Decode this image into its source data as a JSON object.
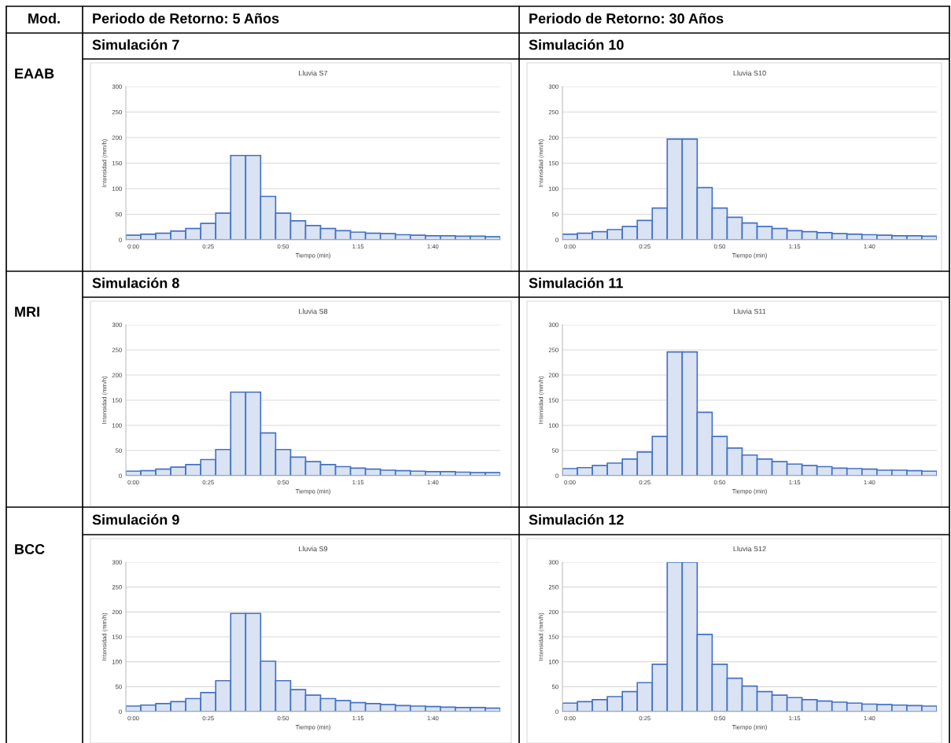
{
  "chart_data": [
    {
      "type": "bar",
      "title": "Lluvia S7",
      "subtitle": "Simulación 7",
      "annotations": [
        "Mod.",
        "Periodo de Retorno: 5 Años",
        "EAAB"
      ],
      "xlabel": "Tiempo (min)",
      "ylabel": "Intensidad (mm/h)",
      "categories": [
        "0:00",
        null,
        null,
        null,
        null,
        "0:25",
        null,
        null,
        null,
        null,
        "0:50",
        null,
        null,
        null,
        null,
        "1:15",
        null,
        null,
        null,
        null,
        "1:40",
        null,
        null,
        null,
        null
      ],
      "values": [
        9,
        11,
        13,
        17,
        22,
        32,
        52,
        165,
        165,
        85,
        52,
        37,
        28,
        22,
        18,
        15,
        13,
        12,
        10,
        9,
        8,
        8,
        7,
        7,
        6
      ],
      "color": "#dae3f3",
      "ylim": [
        0,
        300
      ],
      "yticks": [
        0,
        50,
        100,
        150,
        200,
        250,
        300
      ],
      "grid": "y"
    },
    {
      "type": "bar",
      "title": "Lluvia S10",
      "subtitle": "Simulación 10",
      "annotations": [
        "Periodo de Retorno: 30 Años"
      ],
      "xlabel": "Tiempo (min)",
      "ylabel": "Intensidad (mm/h)",
      "categories": [
        "0:00",
        null,
        null,
        null,
        null,
        "0:25",
        null,
        null,
        null,
        null,
        "0:50",
        null,
        null,
        null,
        null,
        "1:15",
        null,
        null,
        null,
        null,
        "1:40",
        null,
        null,
        null,
        null
      ],
      "values": [
        11,
        13,
        16,
        20,
        26,
        38,
        62,
        197,
        197,
        102,
        62,
        44,
        33,
        26,
        22,
        18,
        16,
        14,
        12,
        11,
        10,
        9,
        8,
        8,
        7
      ],
      "color": "#dae3f3",
      "ylim": [
        0,
        300
      ],
      "yticks": [
        0,
        50,
        100,
        150,
        200,
        250,
        300
      ],
      "grid": "y"
    },
    {
      "type": "bar",
      "title": "Lluvia S8",
      "subtitle": "Simulación 8",
      "annotations": [
        "MRI"
      ],
      "xlabel": "Tiempo (min)",
      "ylabel": "Intensidad (mm/h)",
      "categories": [
        "0:00",
        null,
        null,
        null,
        null,
        "0:25",
        null,
        null,
        null,
        null,
        "0:50",
        null,
        null,
        null,
        null,
        "1:15",
        null,
        null,
        null,
        null,
        "1:40",
        null,
        null,
        null,
        null
      ],
      "values": [
        9,
        10,
        13,
        17,
        22,
        32,
        52,
        166,
        166,
        85,
        52,
        37,
        28,
        22,
        18,
        15,
        13,
        11,
        10,
        9,
        8,
        8,
        7,
        6,
        6
      ],
      "color": "#dae3f3",
      "ylim": [
        0,
        300
      ],
      "yticks": [
        0,
        50,
        100,
        150,
        200,
        250,
        300
      ],
      "grid": "y"
    },
    {
      "type": "bar",
      "title": "Lluvia S11",
      "subtitle": "Simulación 11",
      "xlabel": "Tiempo (min)",
      "ylabel": "Intensidad (mm/h)",
      "categories": [
        "0:00",
        null,
        null,
        null,
        null,
        "0:25",
        null,
        null,
        null,
        null,
        "0:50",
        null,
        null,
        null,
        null,
        "1:15",
        null,
        null,
        null,
        null,
        "1:40",
        null,
        null,
        null,
        null
      ],
      "values": [
        14,
        16,
        20,
        25,
        33,
        47,
        78,
        246,
        246,
        126,
        78,
        55,
        41,
        33,
        28,
        23,
        20,
        18,
        15,
        14,
        13,
        11,
        11,
        10,
        9
      ],
      "color": "#dae3f3",
      "ylim": [
        0,
        300
      ],
      "yticks": [
        0,
        50,
        100,
        150,
        200,
        250,
        300
      ],
      "grid": "y"
    },
    {
      "type": "bar",
      "title": "Lluvia S9",
      "subtitle": "Simulación 9",
      "annotations": [
        "BCC"
      ],
      "xlabel": "Tiempo (min)",
      "ylabel": "Intensidad (mm/h)",
      "categories": [
        "0:00",
        null,
        null,
        null,
        null,
        "0:25",
        null,
        null,
        null,
        null,
        "0:50",
        null,
        null,
        null,
        null,
        "1:15",
        null,
        null,
        null,
        null,
        "1:40",
        null,
        null,
        null,
        null
      ],
      "values": [
        11,
        13,
        16,
        20,
        26,
        38,
        62,
        197,
        197,
        101,
        62,
        44,
        33,
        26,
        22,
        18,
        16,
        14,
        12,
        11,
        10,
        9,
        8,
        8,
        7
      ],
      "color": "#dae3f3",
      "ylim": [
        0,
        300
      ],
      "yticks": [
        0,
        50,
        100,
        150,
        200,
        250,
        300
      ],
      "grid": "y"
    },
    {
      "type": "bar",
      "title": "Lluvia S12",
      "subtitle": "Simulación 12",
      "xlabel": "Tiempo (min)",
      "ylabel": "Intensidad (mm/h)",
      "categories": [
        "0:00",
        null,
        null,
        null,
        null,
        "0:25",
        null,
        null,
        null,
        null,
        "0:50",
        null,
        null,
        null,
        null,
        "1:15",
        null,
        null,
        null,
        null,
        "1:40",
        null,
        null,
        null,
        null
      ],
      "values": [
        17,
        20,
        24,
        30,
        40,
        58,
        95,
        300,
        300,
        155,
        95,
        67,
        51,
        40,
        33,
        28,
        24,
        21,
        19,
        17,
        15,
        14,
        13,
        12,
        11
      ],
      "color": "#dae3f3",
      "ylim": [
        0,
        300
      ],
      "yticks": [
        0,
        50,
        100,
        150,
        200,
        250,
        300
      ],
      "grid": "y"
    }
  ]
}
